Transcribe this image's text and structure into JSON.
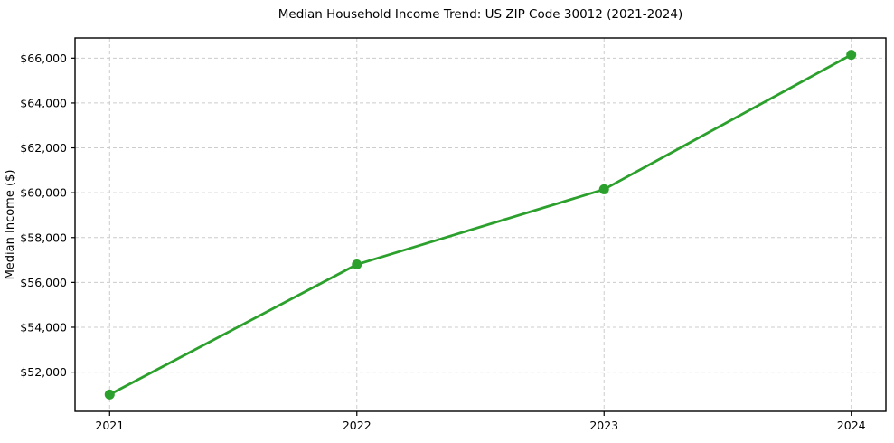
{
  "chart_data": {
    "type": "line",
    "title": "Median Household Income Trend: US ZIP Code 30012 (2021-2024)",
    "xlabel": "",
    "ylabel": "Median Income ($)",
    "x": [
      2021,
      2022,
      2023,
      2024
    ],
    "series": [
      {
        "name": "Median Household Income",
        "values": [
          51000,
          56800,
          60150,
          66150
        ]
      }
    ],
    "xticks": [
      2021,
      2022,
      2023,
      2024
    ],
    "xtick_labels": [
      "2021",
      "2022",
      "2023",
      "2024"
    ],
    "yticks": [
      52000,
      54000,
      56000,
      58000,
      60000,
      62000,
      64000,
      66000
    ],
    "ytick_labels": [
      "$52,000",
      "$54,000",
      "$56,000",
      "$58,000",
      "$60,000",
      "$62,000",
      "$64,000",
      "$66,000"
    ],
    "xlim": [
      2020.86,
      2024.14
    ],
    "ylim": [
      50250,
      66900
    ],
    "grid": true,
    "grid_style": "dashed",
    "legend_position": "none",
    "line_color": "#2ca02c",
    "grid_color": "#cccccc",
    "axis_color": "#000000",
    "background_color": "#ffffff",
    "marker": "circle",
    "marker_size": 11,
    "line_width": 2.8
  }
}
